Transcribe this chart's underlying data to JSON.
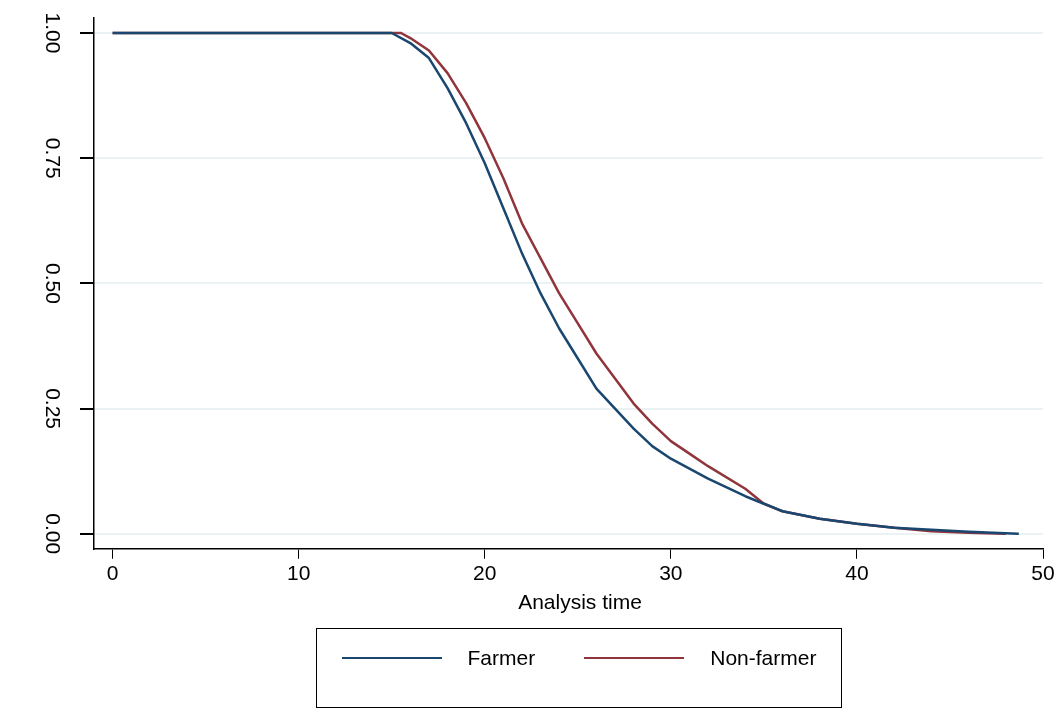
{
  "chart_data": {
    "type": "line",
    "xlabel": "Analysis time",
    "xlim": [
      -1,
      50
    ],
    "xticks": [
      0,
      10,
      20,
      30,
      40,
      50
    ],
    "ylim": [
      -0.03,
      1.03
    ],
    "yticks": [
      {
        "value": 0,
        "label": "0.00"
      },
      {
        "value": 0.25,
        "label": "0.25"
      },
      {
        "value": 0.5,
        "label": "0.50"
      },
      {
        "value": 0.75,
        "label": "0.75"
      },
      {
        "value": 1,
        "label": "1.00"
      }
    ],
    "grid": "y",
    "legend": "bottom",
    "line_style": "solid",
    "marker": "none",
    "series": [
      {
        "name": "Farmer",
        "color": "#1a476f",
        "x": [
          0,
          15,
          16,
          17,
          18,
          19,
          20,
          21,
          22,
          23,
          24,
          25,
          26,
          27,
          28,
          29,
          30,
          32,
          34,
          36,
          38,
          40,
          42,
          44,
          46,
          48.7
        ],
        "values": [
          1,
          1,
          0.98,
          0.95,
          0.89,
          0.82,
          0.74,
          0.65,
          0.56,
          0.48,
          0.41,
          0.35,
          0.29,
          0.25,
          0.21,
          0.175,
          0.15,
          0.11,
          0.075,
          0.045,
          0.03,
          0.02,
          0.012,
          0.008,
          0.004,
          0
        ]
      },
      {
        "name": "Non-farmer",
        "color": "#90353b",
        "x": [
          0,
          15.5,
          16,
          17,
          18,
          19,
          20,
          21,
          22,
          23,
          24,
          25,
          26,
          27,
          28,
          29,
          30,
          31,
          32,
          34,
          35,
          36,
          38,
          40,
          42,
          44,
          46,
          48
        ],
        "values": [
          1,
          1,
          0.99,
          0.965,
          0.92,
          0.86,
          0.79,
          0.71,
          0.62,
          0.55,
          0.48,
          0.42,
          0.36,
          0.31,
          0.26,
          0.22,
          0.185,
          0.16,
          0.135,
          0.09,
          0.06,
          0.045,
          0.03,
          0.02,
          0.012,
          0.005,
          0.002,
          0
        ]
      }
    ]
  }
}
